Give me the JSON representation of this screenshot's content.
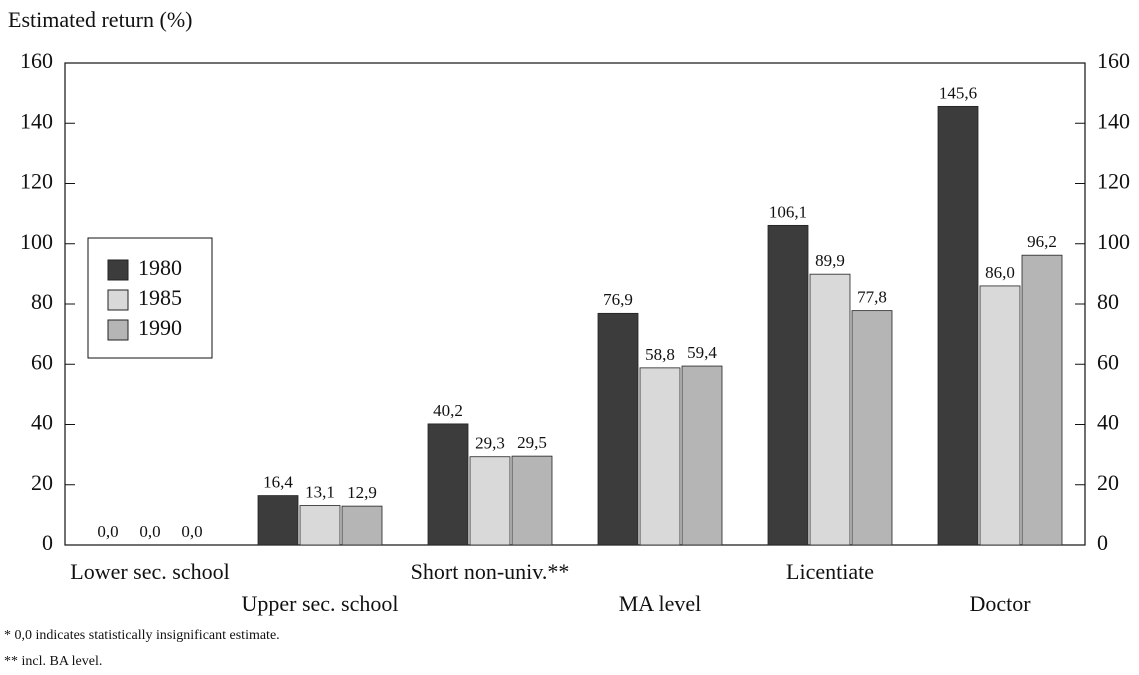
{
  "chart_data": {
    "type": "bar",
    "y_label": "Estimated return (%)",
    "categories": [
      "Lower sec. school",
      "Upper sec. school",
      "Short non-univ.**",
      "MA level",
      "Licentiate",
      "Doctor"
    ],
    "series": [
      {
        "name": "1980",
        "color": "#3c3c3c",
        "values": [
          0,
          16.4,
          40.2,
          76.9,
          106.1,
          145.6
        ],
        "value_labels": [
          "0,0",
          "16,4",
          "40,2",
          "76,9",
          "106,1",
          "145,6"
        ]
      },
      {
        "name": "1985",
        "color": "#d9d9d9",
        "values": [
          0,
          13.1,
          29.3,
          58.8,
          89.9,
          86.0
        ],
        "value_labels": [
          "0,0",
          "13,1",
          "29,3",
          "58,8",
          "89,9",
          "86,0"
        ]
      },
      {
        "name": "1990",
        "color": "#b5b5b5",
        "values": [
          0,
          12.9,
          29.5,
          59.4,
          77.8,
          96.2
        ],
        "value_labels": [
          "0,0",
          "12,9",
          "29,5",
          "59,4",
          "77,8",
          "96,2"
        ]
      }
    ],
    "ylim": [
      0,
      160
    ],
    "yticks": [
      0,
      20,
      40,
      60,
      80,
      100,
      120,
      140,
      160
    ],
    "y2lim": [
      0,
      160
    ],
    "y2ticks": [
      0,
      20,
      40,
      60,
      80,
      100,
      120,
      140,
      160
    ],
    "legend": "left",
    "notes": [
      "* 0,0 indicates statistically insignificant estimate.",
      "** incl. BA level."
    ]
  }
}
